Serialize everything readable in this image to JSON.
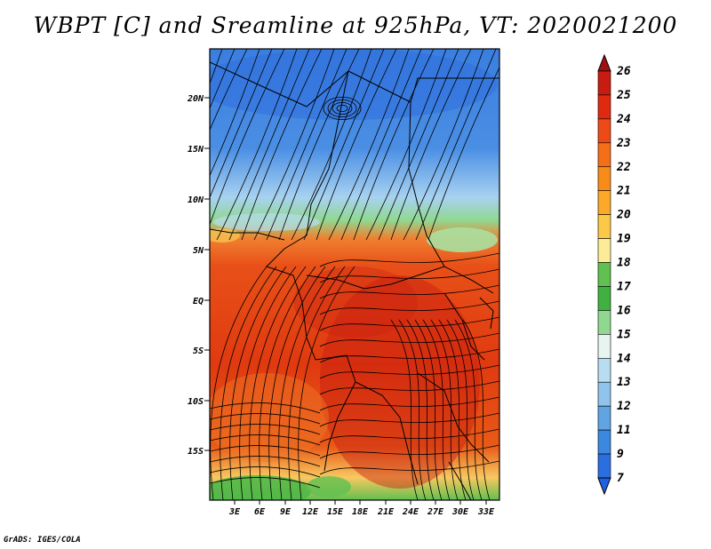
{
  "title": "WBPT [C] and Sreamline at 925hPa, VT: 2020021200",
  "footer": "GrADS: IGES/COLA",
  "map": {
    "lat_ticks": [
      "20N",
      "15N",
      "10N",
      "5N",
      "EQ",
      "5S",
      "10S",
      "15S"
    ],
    "lon_ticks": [
      "3E",
      "6E",
      "9E",
      "12E",
      "15E",
      "18E",
      "21E",
      "24E",
      "27E",
      "30E",
      "33E"
    ]
  },
  "colorbar": {
    "labels": [
      "26",
      "25",
      "24",
      "23",
      "22",
      "21",
      "20",
      "19",
      "18",
      "17",
      "16",
      "15",
      "14",
      "13",
      "12",
      "11",
      "9",
      "7"
    ],
    "colors": [
      "#a01010",
      "#c81c10",
      "#e02a10",
      "#ee4a18",
      "#f56e18",
      "#f98c18",
      "#fca828",
      "#fcc848",
      "#fcec98",
      "#60c050",
      "#40b040",
      "#90d890",
      "#e8f4f0",
      "#b8dcf0",
      "#90c4ec",
      "#60a4e4",
      "#3a88e0",
      "#2a6ee0",
      "#1e60e0"
    ]
  }
}
